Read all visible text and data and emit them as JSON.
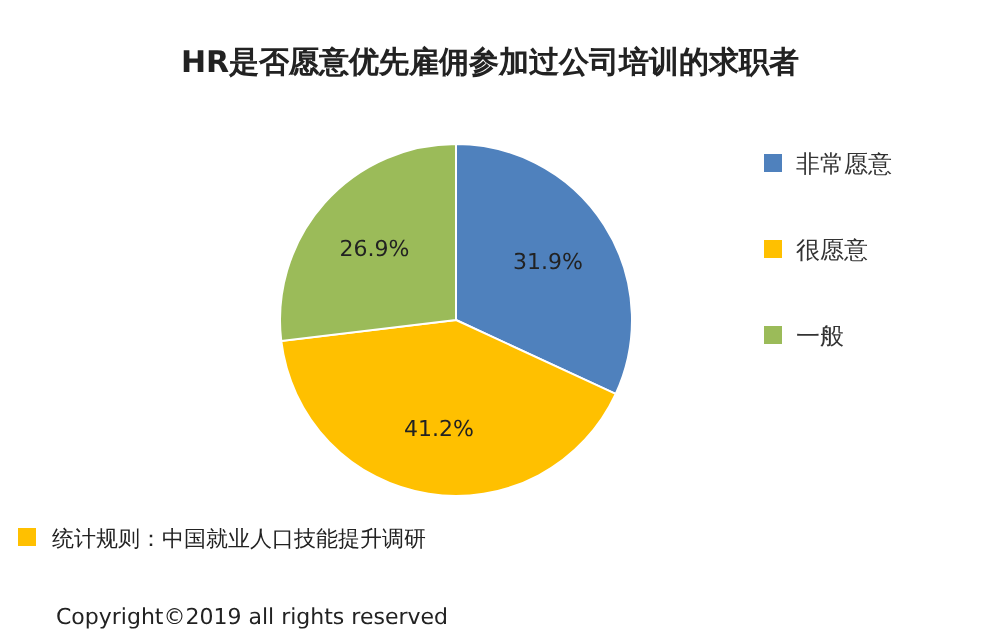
{
  "chart_data": {
    "type": "pie",
    "title": "HR是否愿意优先雇佣参加过公司培训的求职者",
    "categories": [
      "非常愿意",
      "很愿意",
      "一般"
    ],
    "values": [
      31.9,
      41.2,
      26.9
    ],
    "colors": [
      "#4f81bd",
      "#ffc000",
      "#9bbb59"
    ],
    "value_labels": [
      "31.9%",
      "41.2%",
      "26.9%"
    ],
    "legend": "right",
    "annotations": [
      "统计规则：中国就业人口技能提升调研",
      "Copyright©2019 all rights reserved"
    ]
  }
}
